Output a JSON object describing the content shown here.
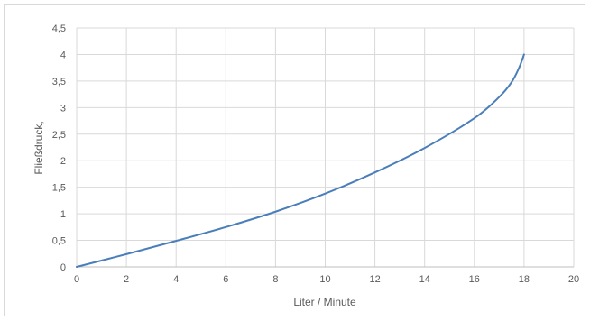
{
  "chart_data": {
    "type": "line",
    "title": "",
    "xlabel": "Liter / Minute",
    "ylabel": "Fließdruck,",
    "xlim": [
      0,
      20
    ],
    "ylim": [
      0,
      4.5
    ],
    "x_ticks": [
      "0",
      "2",
      "4",
      "6",
      "8",
      "10",
      "12",
      "14",
      "16",
      "18",
      "20"
    ],
    "y_ticks": [
      "0",
      "0,5",
      "1",
      "1,5",
      "2",
      "2,5",
      "3",
      "3,5",
      "4",
      "4,5"
    ],
    "grid": true,
    "legend": "none",
    "series": [
      {
        "color": "#4a7ebb",
        "x": [
          0,
          2,
          4,
          6,
          8,
          10,
          12,
          14,
          16,
          17,
          17.5,
          17.8,
          18
        ],
        "y": [
          0,
          0.24,
          0.49,
          0.75,
          1.04,
          1.38,
          1.78,
          2.24,
          2.8,
          3.2,
          3.48,
          3.75,
          4.0
        ]
      }
    ]
  }
}
